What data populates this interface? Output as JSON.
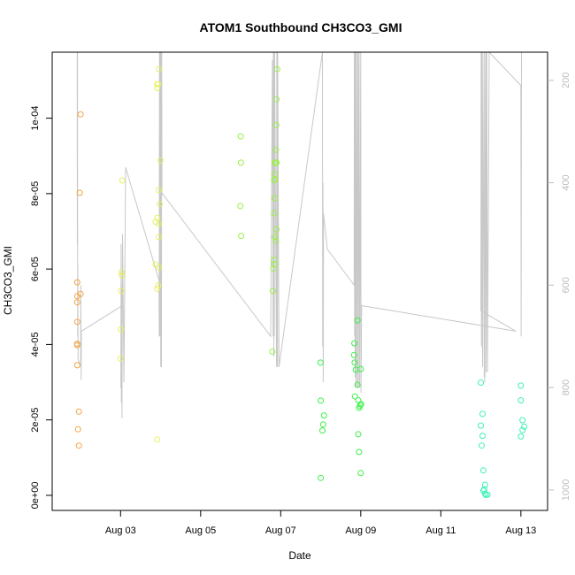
{
  "chart_data": {
    "type": "scatter",
    "title": "ATOM1 Southbound CH3CO3_GMI",
    "xlabel": "Date",
    "ylabel": "CH3CO3_GMI",
    "xlim": [
      "2016-08-01T07:00",
      "2016-08-13T16:00"
    ],
    "ylim": [
      -4e-06,
      0.0001175
    ],
    "x_ticks": [
      {
        "value": "2016-08-03T00:00",
        "label": "Aug 03"
      },
      {
        "value": "2016-08-05T00:00",
        "label": "Aug 05"
      },
      {
        "value": "2016-08-07T00:00",
        "label": "Aug 07"
      },
      {
        "value": "2016-08-09T00:00",
        "label": "Aug 09"
      },
      {
        "value": "2016-08-11T00:00",
        "label": "Aug 11"
      },
      {
        "value": "2016-08-13T00:00",
        "label": "Aug 13"
      }
    ],
    "y_ticks": [
      {
        "value": 0,
        "label": "0e+00"
      },
      {
        "value": 2e-05,
        "label": "2e-05"
      },
      {
        "value": 4e-05,
        "label": "4e-05"
      },
      {
        "value": 6e-05,
        "label": "6e-05"
      },
      {
        "value": 8e-05,
        "label": "8e-05"
      },
      {
        "value": 0.0001,
        "label": "1e-04"
      }
    ],
    "secondary_axis": {
      "side": "right",
      "color": "#bdbdbd",
      "reversed": true,
      "ylim": [
        145,
        1040
      ],
      "ticks": [
        {
          "value": 200,
          "label": "200"
        },
        {
          "value": 400,
          "label": "400"
        },
        {
          "value": 600,
          "label": "600"
        },
        {
          "value": 800,
          "label": "800"
        },
        {
          "value": 1000,
          "label": "1000"
        }
      ],
      "line_color": "#c8c8c8",
      "line": [
        [
          "2016-08-01T22:00",
          140
        ],
        [
          "2016-08-01T22:05",
          520
        ],
        [
          "2016-08-01T22:10",
          140
        ],
        [
          "2016-08-01T22:15",
          700
        ],
        [
          "2016-08-01T22:20",
          560
        ],
        [
          "2016-08-01T22:30",
          745
        ],
        [
          "2016-08-02T00:00",
          760
        ],
        [
          "2016-08-02T00:10",
          600
        ],
        [
          "2016-08-02T00:20",
          785
        ],
        [
          "2016-08-02T00:30",
          690
        ],
        [
          "2016-08-03T01:00",
          640
        ],
        [
          "2016-08-03T00:10",
          800
        ],
        [
          "2016-08-03T00:20",
          520
        ],
        [
          "2016-08-03T00:30",
          830
        ],
        [
          "2016-08-03T00:40",
          600
        ],
        [
          "2016-08-03T00:50",
          860
        ],
        [
          "2016-08-03T01:10",
          500
        ],
        [
          "2016-08-03T02:00",
          790
        ],
        [
          "2016-08-03T03:00",
          370
        ],
        [
          "2016-08-03T23:00",
          590
        ],
        [
          "2016-08-03T23:10",
          700
        ],
        [
          "2016-08-03T23:20",
          140
        ],
        [
          "2016-08-03T23:30",
          700
        ],
        [
          "2016-08-03T23:40",
          140
        ],
        [
          "2016-08-03T23:50",
          700
        ],
        [
          "2016-08-04T00:00",
          140
        ],
        [
          "2016-08-04T00:05",
          760
        ],
        [
          "2016-08-04T00:10",
          140
        ],
        [
          "2016-08-04T00:15",
          760
        ],
        [
          "2016-08-04T00:20",
          140
        ],
        [
          "2016-08-04T00:30",
          760
        ],
        [
          "2016-08-04T00:40",
          140
        ],
        [
          "2016-08-04T00:50",
          420
        ],
        [
          "2016-08-06T18:00",
          700
        ],
        [
          "2016-08-06T19:00",
          160
        ],
        [
          "2016-08-06T19:30",
          700
        ],
        [
          "2016-08-06T19:40",
          140
        ],
        [
          "2016-08-06T19:50",
          740
        ],
        [
          "2016-08-06T20:00",
          140
        ],
        [
          "2016-08-06T20:10",
          700
        ],
        [
          "2016-08-06T20:20",
          140
        ],
        [
          "2016-08-06T21:30",
          760
        ],
        [
          "2016-08-06T21:40",
          140
        ],
        [
          "2016-08-06T21:50",
          760
        ],
        [
          "2016-08-06T22:00",
          140
        ],
        [
          "2016-08-06T22:05",
          760
        ],
        [
          "2016-08-06T22:10",
          140
        ],
        [
          "2016-08-06T23:00",
          760
        ],
        [
          "2016-08-08T01:00",
          140
        ],
        [
          "2016-08-08T01:10",
          720
        ],
        [
          "2016-08-08T01:20",
          400
        ],
        [
          "2016-08-08T01:30",
          790
        ],
        [
          "2016-08-08T01:40",
          460
        ],
        [
          "2016-08-08T04:00",
          530
        ],
        [
          "2016-08-08T20:00",
          600
        ],
        [
          "2016-08-08T20:10",
          140
        ],
        [
          "2016-08-08T20:20",
          700
        ],
        [
          "2016-08-08T20:30",
          140
        ],
        [
          "2016-08-08T20:40",
          780
        ],
        [
          "2016-08-08T20:50",
          140
        ],
        [
          "2016-08-08T21:00",
          800
        ],
        [
          "2016-08-08T21:10",
          140
        ],
        [
          "2016-08-08T21:20",
          800
        ],
        [
          "2016-08-08T22:00",
          140
        ],
        [
          "2016-08-08T22:10",
          800
        ],
        [
          "2016-08-08T22:20",
          140
        ],
        [
          "2016-08-08T22:30",
          800
        ],
        [
          "2016-08-08T23:00",
          140
        ],
        [
          "2016-08-08T23:20",
          800
        ],
        [
          "2016-08-09T00:00",
          140
        ],
        [
          "2016-08-09T00:10",
          810
        ],
        [
          "2016-08-09T00:30",
          640
        ],
        [
          "2016-08-12T21:00",
          690
        ],
        [
          "2016-08-12T00:00",
          650
        ],
        [
          "2016-08-12T00:10",
          140
        ],
        [
          "2016-08-12T00:20",
          720
        ],
        [
          "2016-08-12T00:30",
          140
        ],
        [
          "2016-08-12T01:00",
          760
        ],
        [
          "2016-08-12T01:10",
          140
        ],
        [
          "2016-08-12T02:00",
          780
        ],
        [
          "2016-08-12T02:10",
          140
        ],
        [
          "2016-08-12T02:20",
          790
        ],
        [
          "2016-08-12T03:00",
          140
        ],
        [
          "2016-08-12T03:10",
          770
        ],
        [
          "2016-08-12T03:30",
          140
        ],
        [
          "2016-08-12T04:00",
          770
        ],
        [
          "2016-08-12T05:00",
          140
        ],
        [
          "2016-08-13T00:00",
          210
        ],
        [
          "2016-08-13T00:10",
          700
        ],
        [
          "2016-08-13T00:20",
          140
        ]
      ]
    },
    "series": [
      {
        "color": "#f4a343",
        "points": [
          [
            "2016-08-01T22:00",
            3.45e-05
          ],
          [
            "2016-08-01T22:00",
            4.02e-05
          ],
          [
            "2016-08-01T22:00",
            3.98e-05
          ],
          [
            "2016-08-01T22:00",
            4.6e-05
          ],
          [
            "2016-08-01T22:00",
            5.12e-05
          ],
          [
            "2016-08-01T22:00",
            5.28e-05
          ],
          [
            "2016-08-01T22:00",
            5.65e-05
          ],
          [
            "2016-08-01T23:00",
            2.22e-05
          ],
          [
            "2016-08-01T22:30",
            1.75e-05
          ],
          [
            "2016-08-01T23:00",
            1.32e-05
          ],
          [
            "2016-08-02T00:00",
            5.34e-05
          ],
          [
            "2016-08-01T23:30",
            8.02e-05
          ],
          [
            "2016-08-02T00:00",
            0.000101
          ]
        ]
      },
      {
        "color": "#e8f060",
        "points": [
          [
            "2016-08-03T00:00",
            3.63e-05
          ],
          [
            "2016-08-03T00:10",
            4.4e-05
          ],
          [
            "2016-08-03T00:20",
            5.42e-05
          ],
          [
            "2016-08-03T00:30",
            5.92e-05
          ],
          [
            "2016-08-03T00:40",
            5.83e-05
          ],
          [
            "2016-08-03T01:00",
            8.35e-05
          ],
          [
            "2016-08-03T22:00",
            1.48e-05
          ],
          [
            "2016-08-03T21:00",
            6.12e-05
          ],
          [
            "2016-08-03T22:00",
            5.48e-05
          ],
          [
            "2016-08-03T22:30",
            5.56e-05
          ],
          [
            "2016-08-03T23:00",
            6.04e-05
          ],
          [
            "2016-08-03T21:00",
            7.25e-05
          ],
          [
            "2016-08-03T22:00",
            7.36e-05
          ],
          [
            "2016-08-03T23:00",
            7.2e-05
          ],
          [
            "2016-08-03T23:30",
            7.72e-05
          ],
          [
            "2016-08-03T23:00",
            6.85e-05
          ],
          [
            "2016-08-03T23:00",
            8.1e-05
          ],
          [
            "2016-08-04T00:00",
            8.88e-05
          ],
          [
            "2016-08-03T22:00",
            0.000108
          ],
          [
            "2016-08-03T22:00",
            0.000109
          ],
          [
            "2016-08-03T22:30",
            0.000109
          ],
          [
            "2016-08-03T23:00",
            0.000113
          ]
        ]
      },
      {
        "color": "#9bf048",
        "points": [
          [
            "2016-08-06T00:00",
            9.52e-05
          ],
          [
            "2016-08-06T00:10",
            8.82e-05
          ],
          [
            "2016-08-05T23:50",
            7.67e-05
          ],
          [
            "2016-08-06T00:20",
            6.88e-05
          ],
          [
            "2016-08-06T19:00",
            3.81e-05
          ],
          [
            "2016-08-06T19:20",
            5.42e-05
          ],
          [
            "2016-08-06T19:40",
            6.01e-05
          ],
          [
            "2016-08-06T20:00",
            6.25e-05
          ],
          [
            "2016-08-06T20:10",
            6.12e-05
          ],
          [
            "2016-08-06T20:30",
            6.85e-05
          ],
          [
            "2016-08-06T21:00",
            6.75e-05
          ],
          [
            "2016-08-06T21:30",
            7.05e-05
          ],
          [
            "2016-08-06T20:00",
            7.48e-05
          ],
          [
            "2016-08-06T20:20",
            7.88e-05
          ],
          [
            "2016-08-06T20:00",
            8.36e-05
          ],
          [
            "2016-08-06T20:20",
            8.52e-05
          ],
          [
            "2016-08-06T20:40",
            8.38e-05
          ],
          [
            "2016-08-06T20:20",
            8.82e-05
          ],
          [
            "2016-08-06T21:00",
            8.82e-05
          ],
          [
            "2016-08-06T21:30",
            8.82e-05
          ],
          [
            "2016-08-06T21:10",
            9.16e-05
          ],
          [
            "2016-08-06T21:20",
            9.82e-05
          ],
          [
            "2016-08-06T21:30",
            0.000105
          ],
          [
            "2016-08-06T22:00",
            0.000113
          ]
        ]
      },
      {
        "color": "#3ef04a",
        "points": [
          [
            "2016-08-08T00:00",
            4.6e-06
          ],
          [
            "2016-08-07T23:50",
            3.52e-05
          ],
          [
            "2016-08-08T00:00",
            2.51e-05
          ],
          [
            "2016-08-08T02:00",
            2.12e-05
          ],
          [
            "2016-08-08T01:30",
            1.88e-05
          ],
          [
            "2016-08-08T01:00",
            1.72e-05
          ],
          [
            "2016-08-08T20:00",
            3.72e-05
          ],
          [
            "2016-08-08T20:10",
            4.03e-05
          ],
          [
            "2016-08-08T20:20",
            3.52e-05
          ],
          [
            "2016-08-08T21:00",
            3.33e-05
          ],
          [
            "2016-08-08T22:00",
            4.64e-05
          ],
          [
            "2016-08-08T22:00",
            2.93e-05
          ],
          [
            "2016-08-08T20:30",
            2.62e-05
          ],
          [
            "2016-08-08T22:30",
            2.52e-05
          ],
          [
            "2016-08-08T23:30",
            2.37e-05
          ],
          [
            "2016-08-09T00:00",
            2.41e-05
          ],
          [
            "2016-08-09T00:10",
            2.42e-05
          ],
          [
            "2016-08-08T23:00",
            2.32e-05
          ],
          [
            "2016-08-09T00:00",
            3.35e-05
          ],
          [
            "2016-08-08T22:30",
            1.62e-05
          ],
          [
            "2016-08-08T23:00",
            1.15e-05
          ],
          [
            "2016-08-09T00:00",
            5.9e-06
          ]
        ]
      },
      {
        "color": "#3ff0b8",
        "points": [
          [
            "2016-08-12T00:00",
            2.99e-05
          ],
          [
            "2016-08-12T01:00",
            2.16e-05
          ],
          [
            "2016-08-12T00:00",
            1.85e-05
          ],
          [
            "2016-08-12T01:00",
            1.58e-05
          ],
          [
            "2016-08-12T00:30",
            1.32e-05
          ],
          [
            "2016-08-12T01:30",
            6.6e-06
          ],
          [
            "2016-08-12T02:30",
            2.8e-06
          ],
          [
            "2016-08-12T02:00",
            1.6e-06
          ],
          [
            "2016-08-12T01:30",
            1.2e-06
          ],
          [
            "2016-08-12T02:30",
            4e-07
          ],
          [
            "2016-08-12T03:00",
            1e-07
          ],
          [
            "2016-08-12T04:00",
            2e-07
          ],
          [
            "2016-08-13T00:00",
            2.91e-05
          ],
          [
            "2016-08-13T00:00",
            2.52e-05
          ],
          [
            "2016-08-13T01:00",
            1.99e-05
          ],
          [
            "2016-08-13T02:00",
            1.82e-05
          ],
          [
            "2016-08-13T01:00",
            1.73e-05
          ],
          [
            "2016-08-13T00:00",
            1.56e-05
          ]
        ]
      }
    ],
    "grid": false,
    "legend": "none"
  }
}
